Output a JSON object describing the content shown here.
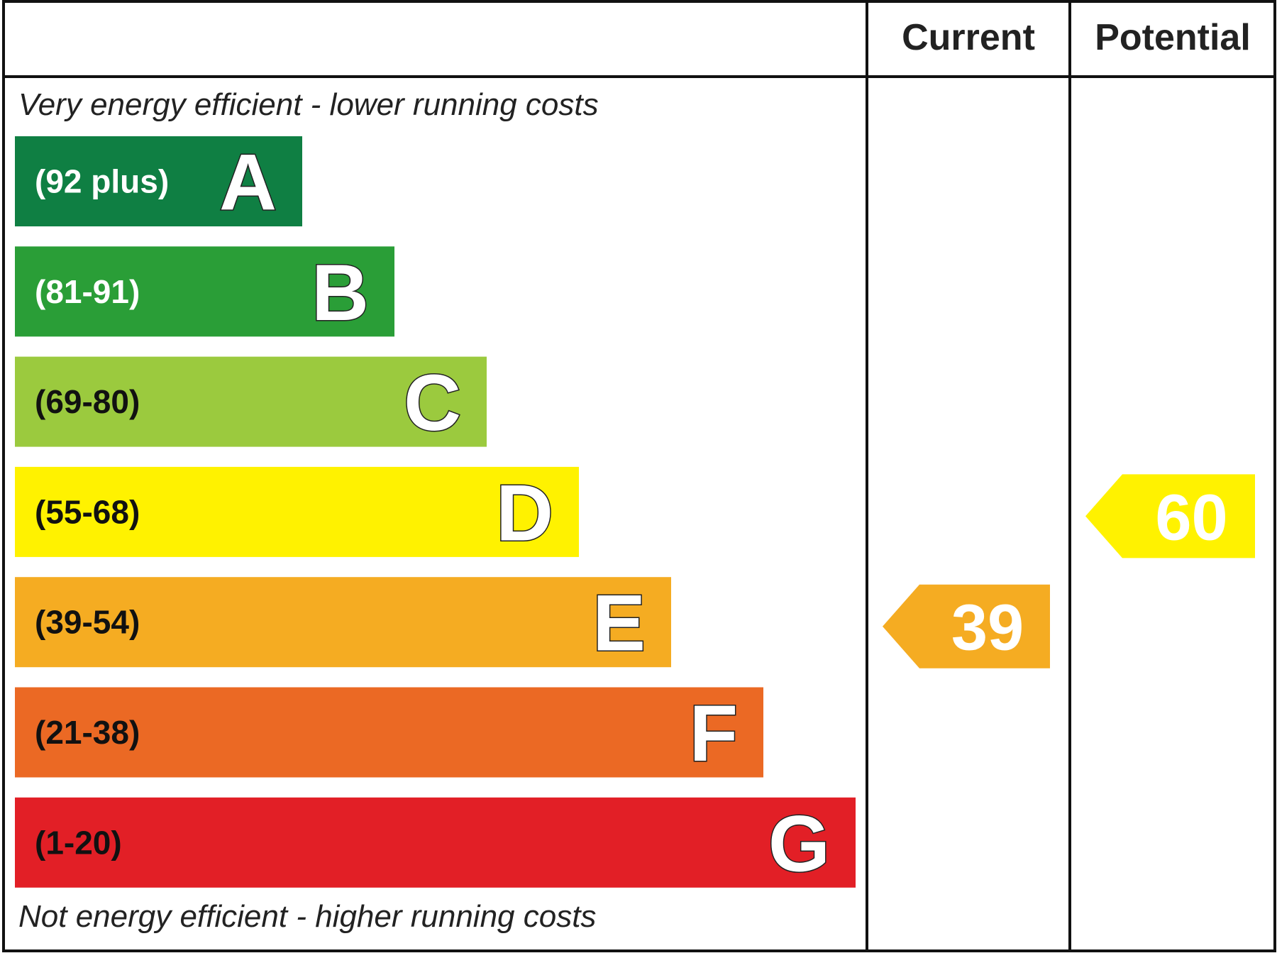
{
  "chart_data": {
    "type": "bar",
    "title": "",
    "columns": {
      "current_label": "Current",
      "potential_label": "Potential"
    },
    "top_caption": "Very energy efficient - lower running costs",
    "bottom_caption": "Not energy efficient - higher running costs",
    "bands": [
      {
        "letter": "A",
        "range": "(92 plus)",
        "min": 92,
        "max": 100,
        "color": "#0f7f43",
        "text_color": "#ffffff"
      },
      {
        "letter": "B",
        "range": "(81-91)",
        "min": 81,
        "max": 91,
        "color": "#2a9e37",
        "text_color": "#ffffff"
      },
      {
        "letter": "C",
        "range": "(69-80)",
        "min": 69,
        "max": 80,
        "color": "#9bca3e",
        "text_color": "#111111"
      },
      {
        "letter": "D",
        "range": "(55-68)",
        "min": 55,
        "max": 68,
        "color": "#fff200",
        "text_color": "#111111"
      },
      {
        "letter": "E",
        "range": "(39-54)",
        "min": 39,
        "max": 54,
        "color": "#f5ac22",
        "text_color": "#111111"
      },
      {
        "letter": "F",
        "range": "(21-38)",
        "min": 21,
        "max": 38,
        "color": "#eb6924",
        "text_color": "#111111"
      },
      {
        "letter": "G",
        "range": "(1-20)",
        "min": 1,
        "max": 20,
        "color": "#e21f26",
        "text_color": "#111111"
      }
    ],
    "current": {
      "value": 39,
      "band": "E",
      "color": "#f5ac22"
    },
    "potential": {
      "value": 60,
      "band": "D",
      "color": "#fff200"
    }
  }
}
